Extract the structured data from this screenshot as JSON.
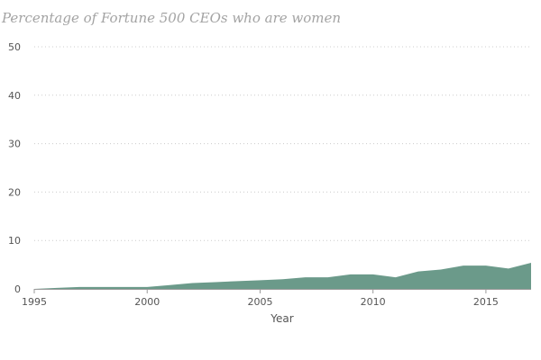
{
  "chart_data": {
    "type": "area",
    "title": "Percentage of Fortune 500 CEOs who are women",
    "xlabel": "Year",
    "ylabel": "",
    "x": [
      1995,
      1996,
      1997,
      1998,
      1999,
      2000,
      2001,
      2002,
      2003,
      2004,
      2005,
      2006,
      2007,
      2008,
      2009,
      2010,
      2011,
      2012,
      2013,
      2014,
      2015,
      2016,
      2017
    ],
    "series": [
      {
        "values": [
          0.0,
          0.2,
          0.4,
          0.4,
          0.4,
          0.4,
          0.8,
          1.2,
          1.4,
          1.6,
          1.8,
          2.0,
          2.4,
          2.4,
          3.0,
          3.0,
          2.4,
          3.6,
          4.0,
          4.8,
          4.8,
          4.2,
          5.4
        ]
      }
    ],
    "xlim": [
      1995,
      2017
    ],
    "ylim": [
      0,
      50
    ],
    "x_ticks": [
      "1995",
      "2000",
      "2005",
      "2010",
      "2015"
    ],
    "y_ticks": [
      "0",
      "10",
      "20",
      "30",
      "40",
      "50"
    ],
    "grid": "horizontal-dotted",
    "legend": "none",
    "colors": {
      "area_fill": "#6b9a8a",
      "grid": "#cccccc",
      "axis": "#9a9a9a",
      "text": "#555555",
      "title": "#a3a3a3"
    }
  }
}
